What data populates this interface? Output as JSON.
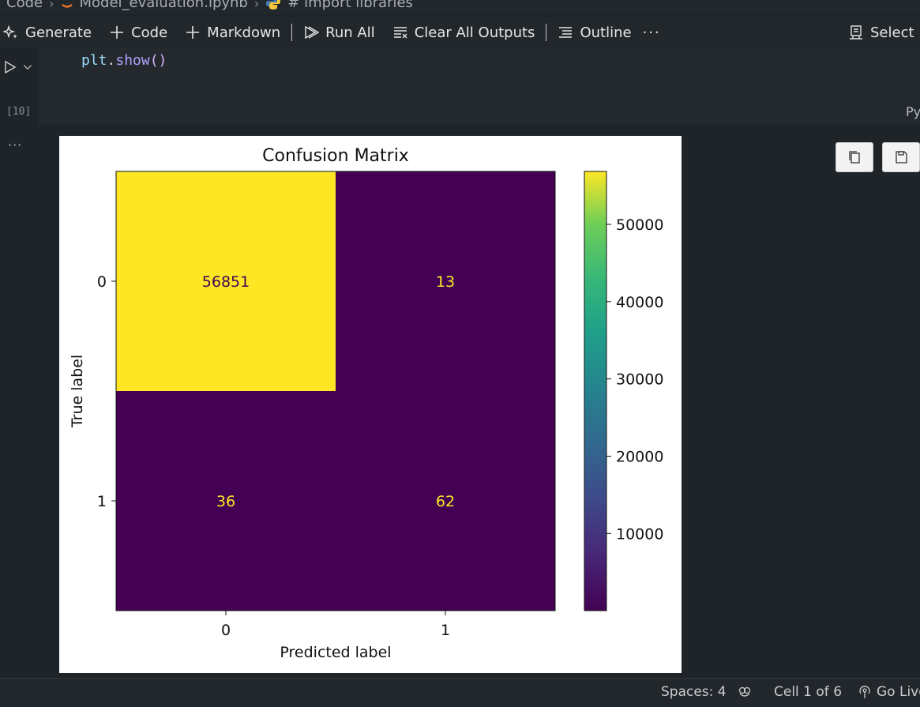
{
  "breadcrumb": {
    "items": [
      "Code",
      "Model_evaluation.ipynb",
      "# import libraries"
    ]
  },
  "toolbar": {
    "generate_label": "Generate",
    "code_label": "Code",
    "markdown_label": "Markdown",
    "run_all_label": "Run All",
    "clear_all_outputs_label": "Clear All Outputs",
    "outline_label": "Outline",
    "more_label": "···",
    "select_kernel_label": "Select I"
  },
  "cell": {
    "code_object": "plt",
    "code_dot": ".",
    "code_function": "show",
    "code_parens": "()",
    "execution_count": "[10]",
    "language_label": "Py",
    "output_more_label": "···"
  },
  "chart_data": {
    "type": "heatmap",
    "title": "Confusion Matrix",
    "xlabel": "Predicted label",
    "ylabel": "True label",
    "x_categories": [
      "0",
      "1"
    ],
    "y_categories": [
      "0",
      "1"
    ],
    "values": [
      [
        56851,
        13
      ],
      [
        36,
        62
      ]
    ],
    "cell_labels": [
      [
        "56851",
        "13"
      ],
      [
        "36",
        "62"
      ]
    ],
    "colormap": "viridis",
    "colorbar": {
      "ticks": [
        10000,
        20000,
        30000,
        40000,
        50000
      ],
      "tick_labels": [
        "10000",
        "20000",
        "30000",
        "40000",
        "50000"
      ],
      "range": [
        13,
        56851
      ]
    }
  },
  "statusbar": {
    "spaces_label": "Spaces: 4",
    "cell_label": "Cell 1 of 6",
    "go_live_label": "Go Live"
  }
}
